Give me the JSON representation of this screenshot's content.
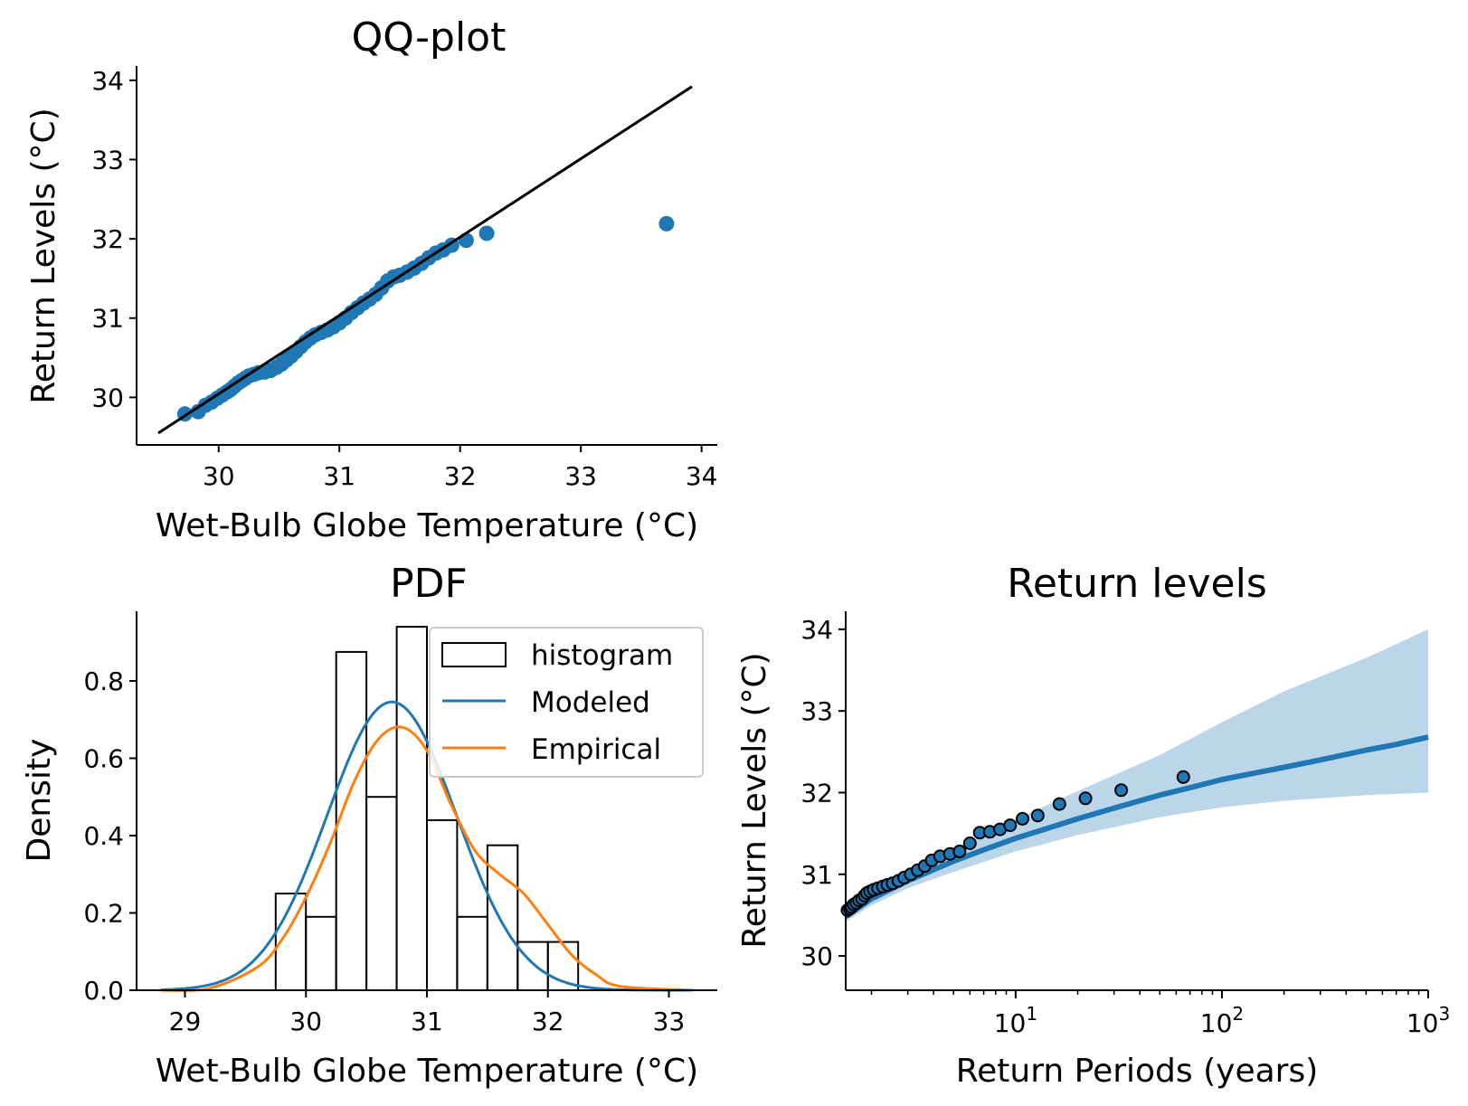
{
  "chart_data": [
    {
      "id": "qq",
      "type": "scatter",
      "title": "QQ-plot",
      "xlabel": "Wet-Bulb Globe Temperature (°C)",
      "ylabel": "Return Levels (°C)",
      "xlim": [
        29.32,
        34.13
      ],
      "ylim": [
        29.4,
        34.18
      ],
      "xticks": [
        30,
        31,
        32,
        33,
        34
      ],
      "yticks": [
        30,
        31,
        32,
        33,
        34
      ],
      "line": {
        "x": [
          29.5,
          33.92
        ],
        "y": [
          29.55,
          33.92
        ],
        "color": "#000000"
      },
      "point_color": "#1f77b4",
      "points": [
        [
          29.72,
          29.79
        ],
        [
          29.83,
          29.82
        ],
        [
          29.89,
          29.9
        ],
        [
          29.94,
          29.94
        ],
        [
          29.99,
          29.99
        ],
        [
          30.03,
          30.03
        ],
        [
          30.07,
          30.07
        ],
        [
          30.1,
          30.1
        ],
        [
          30.13,
          30.14
        ],
        [
          30.16,
          30.18
        ],
        [
          30.19,
          30.21
        ],
        [
          30.22,
          30.24
        ],
        [
          30.25,
          30.27
        ],
        [
          30.29,
          30.29
        ],
        [
          30.33,
          30.31
        ],
        [
          30.38,
          30.32
        ],
        [
          30.43,
          30.34
        ],
        [
          30.48,
          30.38
        ],
        [
          30.52,
          30.42
        ],
        [
          30.56,
          30.47
        ],
        [
          30.6,
          30.52
        ],
        [
          30.64,
          30.58
        ],
        [
          30.68,
          30.64
        ],
        [
          30.72,
          30.7
        ],
        [
          30.76,
          30.75
        ],
        [
          30.8,
          30.79
        ],
        [
          30.85,
          30.82
        ],
        [
          30.9,
          30.85
        ],
        [
          30.95,
          30.89
        ],
        [
          31.0,
          30.94
        ],
        [
          31.05,
          31.0
        ],
        [
          31.1,
          31.07
        ],
        [
          31.15,
          31.13
        ],
        [
          31.2,
          31.19
        ],
        [
          31.25,
          31.24
        ],
        [
          31.3,
          31.3
        ],
        [
          31.35,
          31.38
        ],
        [
          31.4,
          31.47
        ],
        [
          31.45,
          31.52
        ],
        [
          31.5,
          31.54
        ],
        [
          31.56,
          31.58
        ],
        [
          31.62,
          31.63
        ],
        [
          31.68,
          31.69
        ],
        [
          31.74,
          31.76
        ],
        [
          31.8,
          31.82
        ],
        [
          31.86,
          31.86
        ],
        [
          31.93,
          31.92
        ],
        [
          32.05,
          31.98
        ],
        [
          32.22,
          32.07
        ],
        [
          33.71,
          32.19
        ]
      ]
    },
    {
      "id": "pdf",
      "type": "bar",
      "title": "PDF",
      "xlabel": "Wet-Bulb Globe Temperature (°C)",
      "ylabel": "Density",
      "xlim": [
        28.6,
        33.4
      ],
      "ylim": [
        0,
        0.98
      ],
      "xticks": [
        29,
        30,
        31,
        32,
        33
      ],
      "yticks": [
        0.0,
        0.2,
        0.4,
        0.6,
        0.8
      ],
      "ytick_labels": [
        "0.0",
        "0.2",
        "0.4",
        "0.6",
        "0.8"
      ],
      "histogram": {
        "name": "histogram",
        "edges": [
          29.75,
          30.0,
          30.25,
          30.5,
          30.75,
          31.0,
          31.25,
          31.5,
          31.75,
          32.0,
          32.25
        ],
        "values": [
          0.25,
          0.19,
          0.875,
          0.5,
          0.94,
          0.44,
          0.19,
          0.375,
          0.125,
          0.125
        ],
        "color": "#000000"
      },
      "series": [
        {
          "name": "Modeled",
          "color": "#1f77b4",
          "kind": "normal",
          "mean": 30.71,
          "sd": 0.535
        },
        {
          "name": "Empirical",
          "color": "#ff7f0e",
          "kind": "kde",
          "x": [
            28.8,
            29.2,
            29.6,
            29.8,
            30.0,
            30.2,
            30.4,
            30.6,
            30.8,
            31.0,
            31.2,
            31.4,
            31.6,
            31.8,
            32.0,
            32.2,
            32.4,
            32.6,
            33.2
          ],
          "y": [
            0.0,
            0.005,
            0.06,
            0.13,
            0.24,
            0.38,
            0.54,
            0.65,
            0.68,
            0.62,
            0.48,
            0.36,
            0.3,
            0.25,
            0.17,
            0.09,
            0.04,
            0.01,
            0.0
          ]
        }
      ],
      "legend": {
        "position": "top-right",
        "entries": [
          "histogram",
          "Modeled",
          "Empirical"
        ]
      }
    },
    {
      "id": "rl",
      "type": "line",
      "title": "Return levels",
      "xlabel": "Return Periods (years)",
      "ylabel": "Return Levels (°C)",
      "xscale": "log",
      "xlim": [
        1.5,
        1000
      ],
      "ylim": [
        29.58,
        34.22
      ],
      "xticks": [
        10,
        100,
        1000
      ],
      "xtick_labels": [
        {
          "base": "10",
          "exp": "1"
        },
        {
          "base": "10",
          "exp": "2"
        },
        {
          "base": "10",
          "exp": "3"
        }
      ],
      "yticks": [
        30,
        31,
        32,
        33,
        34
      ],
      "line_color": "#1f77b4",
      "band_color": "#1f77b4",
      "model": {
        "x": [
          1.5,
          2,
          3,
          5,
          7,
          10,
          15,
          20,
          30,
          50,
          70,
          100,
          200,
          300,
          500,
          700,
          1000
        ],
        "y": [
          30.48,
          30.7,
          30.92,
          31.16,
          31.3,
          31.44,
          31.58,
          31.68,
          31.81,
          31.97,
          32.06,
          32.16,
          32.31,
          32.4,
          32.52,
          32.59,
          32.68
        ]
      },
      "band": {
        "x": [
          1.5,
          2,
          3,
          5,
          10,
          20,
          50,
          100,
          200,
          500,
          1000
        ],
        "lower": [
          30.42,
          30.62,
          30.83,
          31.03,
          31.28,
          31.48,
          31.7,
          31.82,
          31.9,
          31.97,
          32.0
        ],
        "upper": [
          30.58,
          30.82,
          31.05,
          31.32,
          31.67,
          32.02,
          32.46,
          32.86,
          33.24,
          33.65,
          34.0
        ]
      },
      "points": [
        [
          1.53,
          30.56
        ],
        [
          1.57,
          30.58
        ],
        [
          1.6,
          30.6
        ],
        [
          1.64,
          30.63
        ],
        [
          1.69,
          30.65
        ],
        [
          1.74,
          30.68
        ],
        [
          1.8,
          30.7
        ],
        [
          1.85,
          30.74
        ],
        [
          1.9,
          30.77
        ],
        [
          1.97,
          30.79
        ],
        [
          2.05,
          30.81
        ],
        [
          2.15,
          30.83
        ],
        [
          2.27,
          30.85
        ],
        [
          2.39,
          30.87
        ],
        [
          2.53,
          30.89
        ],
        [
          2.7,
          30.92
        ],
        [
          2.88,
          30.96
        ],
        [
          3.1,
          31.0
        ],
        [
          3.35,
          31.05
        ],
        [
          3.62,
          31.1
        ],
        [
          3.92,
          31.17
        ],
        [
          4.3,
          31.22
        ],
        [
          4.8,
          31.25
        ],
        [
          5.35,
          31.28
        ],
        [
          6.0,
          31.38
        ],
        [
          6.7,
          31.51
        ],
        [
          7.5,
          31.52
        ],
        [
          8.4,
          31.55
        ],
        [
          9.4,
          31.6
        ],
        [
          10.8,
          31.68
        ],
        [
          12.8,
          31.72
        ],
        [
          16.3,
          31.86
        ],
        [
          21.8,
          31.93
        ],
        [
          32.5,
          32.03
        ],
        [
          65,
          32.19
        ]
      ]
    }
  ]
}
